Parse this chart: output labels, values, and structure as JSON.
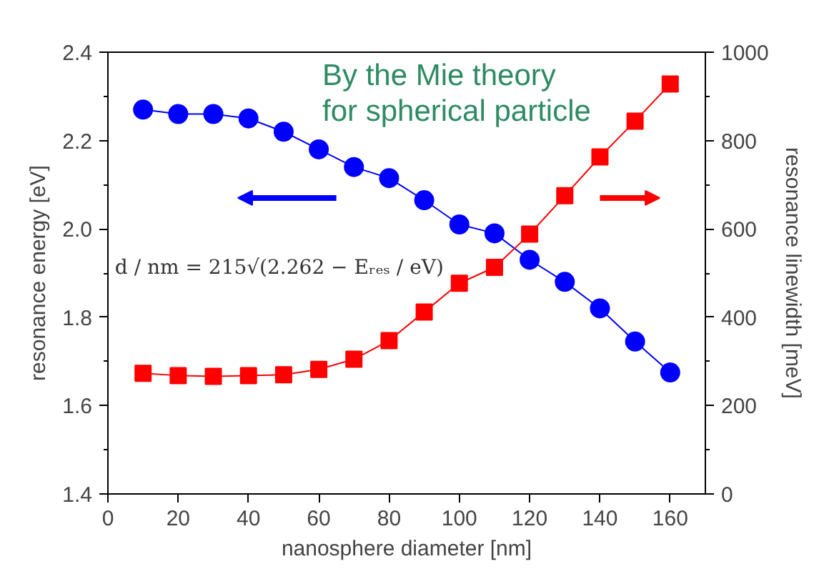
{
  "chart_data": {
    "type": "line",
    "title": "By the Mie theory\nfor spherical particle",
    "xlabel": "nanosphere diameter [nm]",
    "ylabel": "resonance energy [eV]",
    "y2label": "resonance linewidth [meV]",
    "x": [
      10,
      20,
      30,
      40,
      50,
      60,
      70,
      80,
      90,
      100,
      110,
      120,
      130,
      140,
      150,
      160
    ],
    "series": [
      {
        "color": "#0000ff",
        "marker": "circle",
        "values": [
          2.27,
          2.26,
          2.26,
          2.25,
          2.22,
          2.18,
          2.14,
          2.115,
          2.065,
          2.01,
          1.99,
          1.93,
          1.88,
          1.82,
          1.745,
          1.675
        ]
      },
      {
        "color": "#ff0000",
        "marker": "square",
        "axis": "y2",
        "values": [
          273,
          268,
          266,
          268,
          270,
          282,
          305,
          347,
          412,
          477,
          513,
          588,
          675,
          763,
          844,
          928
        ]
      }
    ],
    "xlim": [
      0,
      170
    ],
    "xticks": [
      0,
      20,
      40,
      60,
      80,
      100,
      120,
      140,
      160
    ],
    "ylim": [
      1.4,
      2.4
    ],
    "yticks": [
      1.4,
      1.6,
      1.8,
      {
        "value": 2.0,
        "label": "2.0"
      },
      2.2,
      2.4
    ],
    "y2lim": [
      0,
      1000
    ],
    "y2ticks": [
      0,
      200,
      400,
      600,
      800,
      1000
    ],
    "annotations": [
      "d / nm = 215√(2.262 − Eᵣₑₛ / eV)"
    ],
    "grid": false,
    "line_style": "solid"
  }
}
